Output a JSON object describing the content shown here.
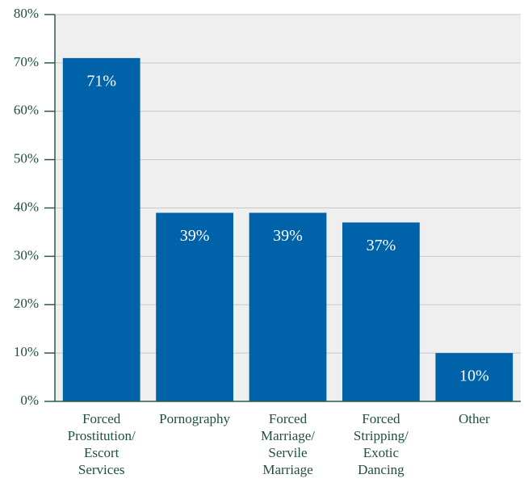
{
  "chart_data": {
    "type": "bar",
    "categories": [
      "Forced\nProstitution/\nEscort\nServices",
      "Pornography",
      "Forced\nMarriage/\nServile\nMarriage",
      "Forced\nStripping/\nExotic\nDancing",
      "Other"
    ],
    "values": [
      71,
      39,
      39,
      37,
      10
    ],
    "value_labels": [
      "71%",
      "39%",
      "39%",
      "37%",
      "10%"
    ],
    "color": "#0062a8",
    "ylim": [
      0,
      80
    ],
    "yticks": [
      {
        "value": 0,
        "label": "0%"
      },
      {
        "value": 10,
        "label": "10%"
      },
      {
        "value": 20,
        "label": "20%"
      },
      {
        "value": 30,
        "label": "30%"
      },
      {
        "value": 40,
        "label": "40%"
      },
      {
        "value": 50,
        "label": "50%"
      },
      {
        "value": 60,
        "label": "60%"
      },
      {
        "value": 70,
        "label": "70%"
      },
      {
        "value": 80,
        "label": "80%"
      }
    ],
    "grid": true
  }
}
